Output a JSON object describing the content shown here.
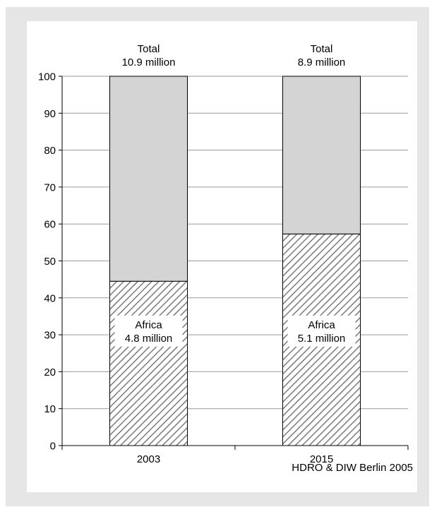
{
  "chart_data": {
    "type": "bar",
    "stacked": true,
    "normalized_percent": true,
    "categories": [
      "2003",
      "2015"
    ],
    "ylim": [
      0,
      100
    ],
    "yticks": [
      0,
      10,
      20,
      30,
      40,
      50,
      60,
      70,
      80,
      90,
      100
    ],
    "grid": true,
    "series": [
      {
        "values": [
          44.5,
          57.3
        ],
        "fill": "hatched",
        "color": "#7a7a7a"
      },
      {
        "values": [
          55.5,
          42.7
        ],
        "fill": "solid",
        "color": "#d4d4d4"
      }
    ],
    "total_labels": [
      {
        "line1": "Total",
        "line2": "10.9 million"
      },
      {
        "line1": "Total",
        "line2": "8.9 million"
      }
    ],
    "segment_labels": [
      {
        "line1": "Africa",
        "line2": "4.8 million"
      },
      {
        "line1": "Africa",
        "line2": "5.1 million"
      }
    ],
    "source": "HDRO & DIW Berlin 2005"
  }
}
